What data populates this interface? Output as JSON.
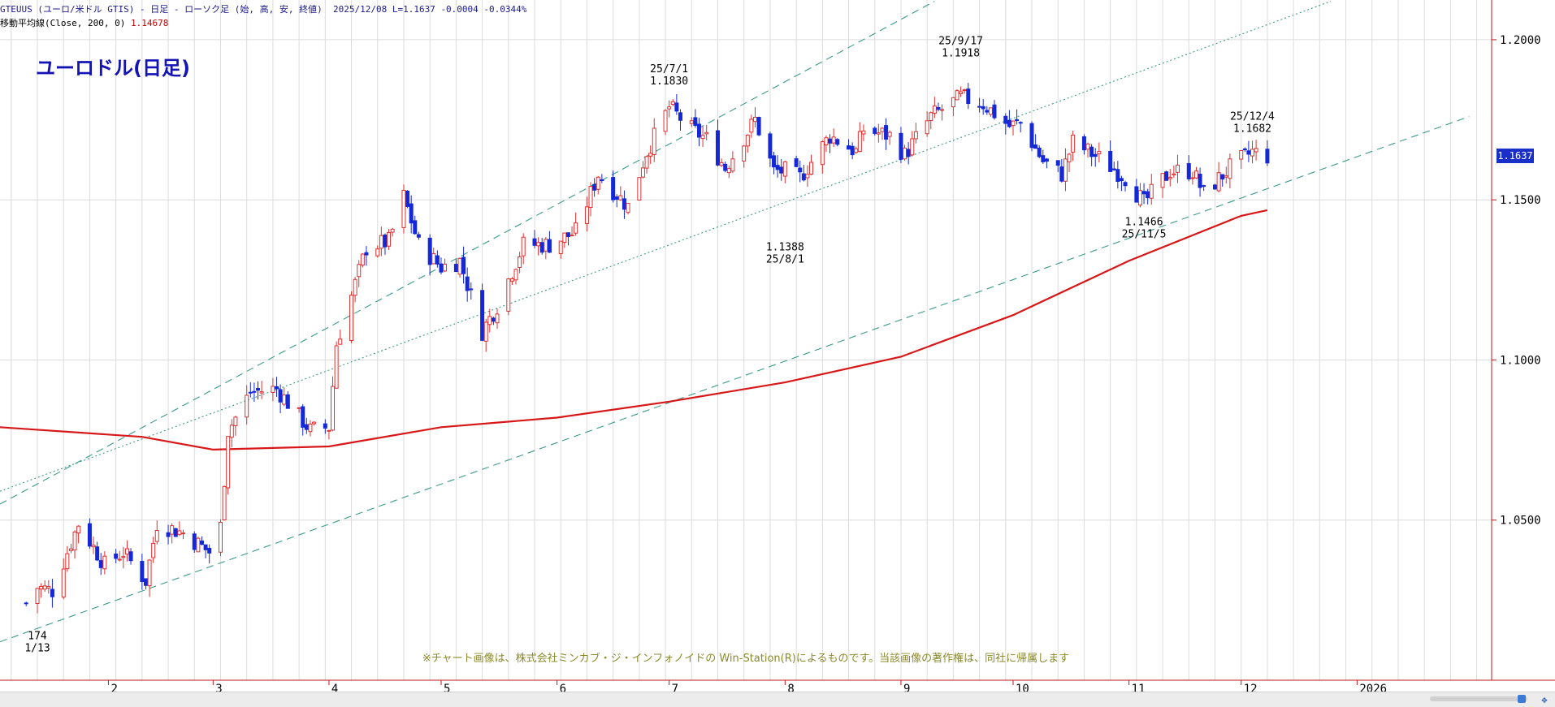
{
  "header": {
    "symbol": "GTEUUS",
    "symbol_desc": "(ユーロ/米ドル GTIS)",
    "period": "- 日足 - ローソク足",
    "fields": "(始, 高, 安, 終値)",
    "date": "2025/12/08",
    "last": "L=1.1637",
    "change": "-0.0004",
    "change_pct": "-0.0344%",
    "ma_label": "移動平均線(Close, 200, 0)",
    "ma_value": "1.14678"
  },
  "footer_note": "※チャート画像は、株式会社ミンカブ・ジ・インフォノイドの Win-Station(R)によるものです。当該画像の著作権は、同社に帰属します",
  "colors": {
    "up": "#e03030",
    "down": "#1428d8",
    "ma": "#d81818",
    "channel": "#3a9a8a",
    "grid": "#dcdcdc",
    "axis": "#c01818",
    "annotation": "#000000",
    "price_box": "#1a2ec8"
  },
  "chart_data": {
    "type": "candlestick",
    "title": "ユーロドル(日足)",
    "ylim": [
      1.0,
      1.2124
    ],
    "y_ticks": [
      "1.2000",
      "1.1500",
      "1.1000",
      "1.0500"
    ],
    "y_tick_values": [
      1.2,
      1.15,
      1.1,
      1.05
    ],
    "x_ticks": [
      {
        "label": "2",
        "date": "2025-02-01"
      },
      {
        "label": "3",
        "date": "2025-03-01"
      },
      {
        "label": "4",
        "date": "2025-04-01"
      },
      {
        "label": "5",
        "date": "2025-05-01"
      },
      {
        "label": "6",
        "date": "2025-06-01"
      },
      {
        "label": "7",
        "date": "2025-07-01"
      },
      {
        "label": "8",
        "date": "2025-08-01"
      },
      {
        "label": "9",
        "date": "2025-09-01"
      },
      {
        "label": "10",
        "date": "2025-10-01"
      },
      {
        "label": "11",
        "date": "2025-11-01"
      },
      {
        "label": "12",
        "date": "2025-12-01"
      },
      {
        "label": "2026",
        "date": "2026-01-01"
      }
    ],
    "x_range": [
      "2025-01-03",
      "2026-02-06"
    ],
    "grid": "vertical weekly lines and horizontal lines at each tick",
    "last_price": "1.1637",
    "close_path": [
      [
        "2025-01-10",
        1.024
      ],
      [
        "2025-01-13",
        1.029
      ],
      [
        "2025-01-17",
        1.028
      ],
      [
        "2025-01-24",
        1.049
      ],
      [
        "2025-01-31",
        1.036
      ],
      [
        "2025-02-05",
        1.04
      ],
      [
        "2025-02-11",
        1.031
      ],
      [
        "2025-02-14",
        1.049
      ],
      [
        "2025-02-21",
        1.046
      ],
      [
        "2025-02-28",
        1.04
      ],
      [
        "2025-03-03",
        1.048
      ],
      [
        "2025-03-05",
        1.078
      ],
      [
        "2025-03-11",
        1.09
      ],
      [
        "2025-03-18",
        1.091
      ],
      [
        "2025-03-27",
        1.078
      ],
      [
        "2025-04-01",
        1.079
      ],
      [
        "2025-04-03",
        1.105
      ],
      [
        "2025-04-11",
        1.135
      ],
      [
        "2025-04-17",
        1.137
      ],
      [
        "2025-04-21",
        1.151
      ],
      [
        "2025-04-25",
        1.136
      ],
      [
        "2025-05-01",
        1.129
      ],
      [
        "2025-05-06",
        1.131
      ],
      [
        "2025-05-12",
        1.109
      ],
      [
        "2025-05-16",
        1.117
      ],
      [
        "2025-05-23",
        1.136
      ],
      [
        "2025-05-30",
        1.136
      ],
      [
        "2025-06-06",
        1.14
      ],
      [
        "2025-06-12",
        1.158
      ],
      [
        "2025-06-20",
        1.148
      ],
      [
        "2025-06-25",
        1.165
      ],
      [
        "2025-07-01",
        1.179
      ],
      [
        "2025-07-07",
        1.172
      ],
      [
        "2025-07-11",
        1.169
      ],
      [
        "2025-07-16",
        1.16
      ],
      [
        "2025-07-24",
        1.175
      ],
      [
        "2025-07-29",
        1.159
      ],
      [
        "2025-08-01",
        1.159
      ],
      [
        "2025-08-05",
        1.157
      ],
      [
        "2025-08-13",
        1.17
      ],
      [
        "2025-08-20",
        1.165
      ],
      [
        "2025-08-22",
        1.172
      ],
      [
        "2025-08-29",
        1.17
      ],
      [
        "2025-09-02",
        1.164
      ],
      [
        "2025-09-09",
        1.176
      ],
      [
        "2025-09-17",
        1.182
      ],
      [
        "2025-09-23",
        1.18
      ],
      [
        "2025-09-30",
        1.173
      ],
      [
        "2025-10-03",
        1.174
      ],
      [
        "2025-10-09",
        1.162
      ],
      [
        "2025-10-14",
        1.158
      ],
      [
        "2025-10-17",
        1.168
      ],
      [
        "2025-10-24",
        1.163
      ],
      [
        "2025-10-31",
        1.157
      ],
      [
        "2025-11-05",
        1.149
      ],
      [
        "2025-11-12",
        1.159
      ],
      [
        "2025-11-18",
        1.159
      ],
      [
        "2025-11-21",
        1.152
      ],
      [
        "2025-11-28",
        1.16
      ],
      [
        "2025-12-04",
        1.165
      ],
      [
        "2025-12-08",
        1.1637
      ]
    ],
    "ma200_path": [
      [
        "2025-01-03",
        1.079
      ],
      [
        "2025-02-10",
        1.076
      ],
      [
        "2025-03-01",
        1.072
      ],
      [
        "2025-04-01",
        1.073
      ],
      [
        "2025-05-01",
        1.079
      ],
      [
        "2025-06-01",
        1.082
      ],
      [
        "2025-07-01",
        1.087
      ],
      [
        "2025-08-01",
        1.093
      ],
      [
        "2025-09-01",
        1.101
      ],
      [
        "2025-10-01",
        1.114
      ],
      [
        "2025-11-01",
        1.131
      ],
      [
        "2025-12-01",
        1.145
      ],
      [
        "2025-12-08",
        1.14678
      ]
    ],
    "channel_lines": [
      {
        "style": "dashed",
        "from": [
          "2025-01-03",
          1.055
        ],
        "to": [
          "2025-09-10",
          1.212
        ]
      },
      {
        "style": "dotted",
        "from": [
          "2025-01-03",
          1.059
        ],
        "to": [
          "2025-12-25",
          1.212
        ]
      },
      {
        "style": "dashed",
        "from": [
          "2025-01-03",
          1.012
        ],
        "to": [
          "2026-01-31",
          1.176
        ]
      }
    ],
    "annotations": [
      {
        "date": "2025-01-13",
        "price": 1.0174,
        "lines": [
          "174",
          "1/13"
        ],
        "pos": "below"
      },
      {
        "date": "2025-07-01",
        "price": 1.183,
        "lines": [
          "25/7/1",
          "1.1830"
        ],
        "pos": "above"
      },
      {
        "date": "2025-08-01",
        "price": 1.1388,
        "lines": [
          "1.1388",
          "25/8/1"
        ],
        "pos": "below"
      },
      {
        "date": "2025-09-17",
        "price": 1.1918,
        "lines": [
          "25/9/17",
          "1.1918"
        ],
        "pos": "above"
      },
      {
        "date": "2025-11-05",
        "price": 1.1466,
        "lines": [
          "1.1466",
          "25/11/5"
        ],
        "pos": "below"
      },
      {
        "date": "2025-12-04",
        "price": 1.1682,
        "lines": [
          "25/12/4",
          "1.1682"
        ],
        "pos": "above"
      }
    ]
  }
}
